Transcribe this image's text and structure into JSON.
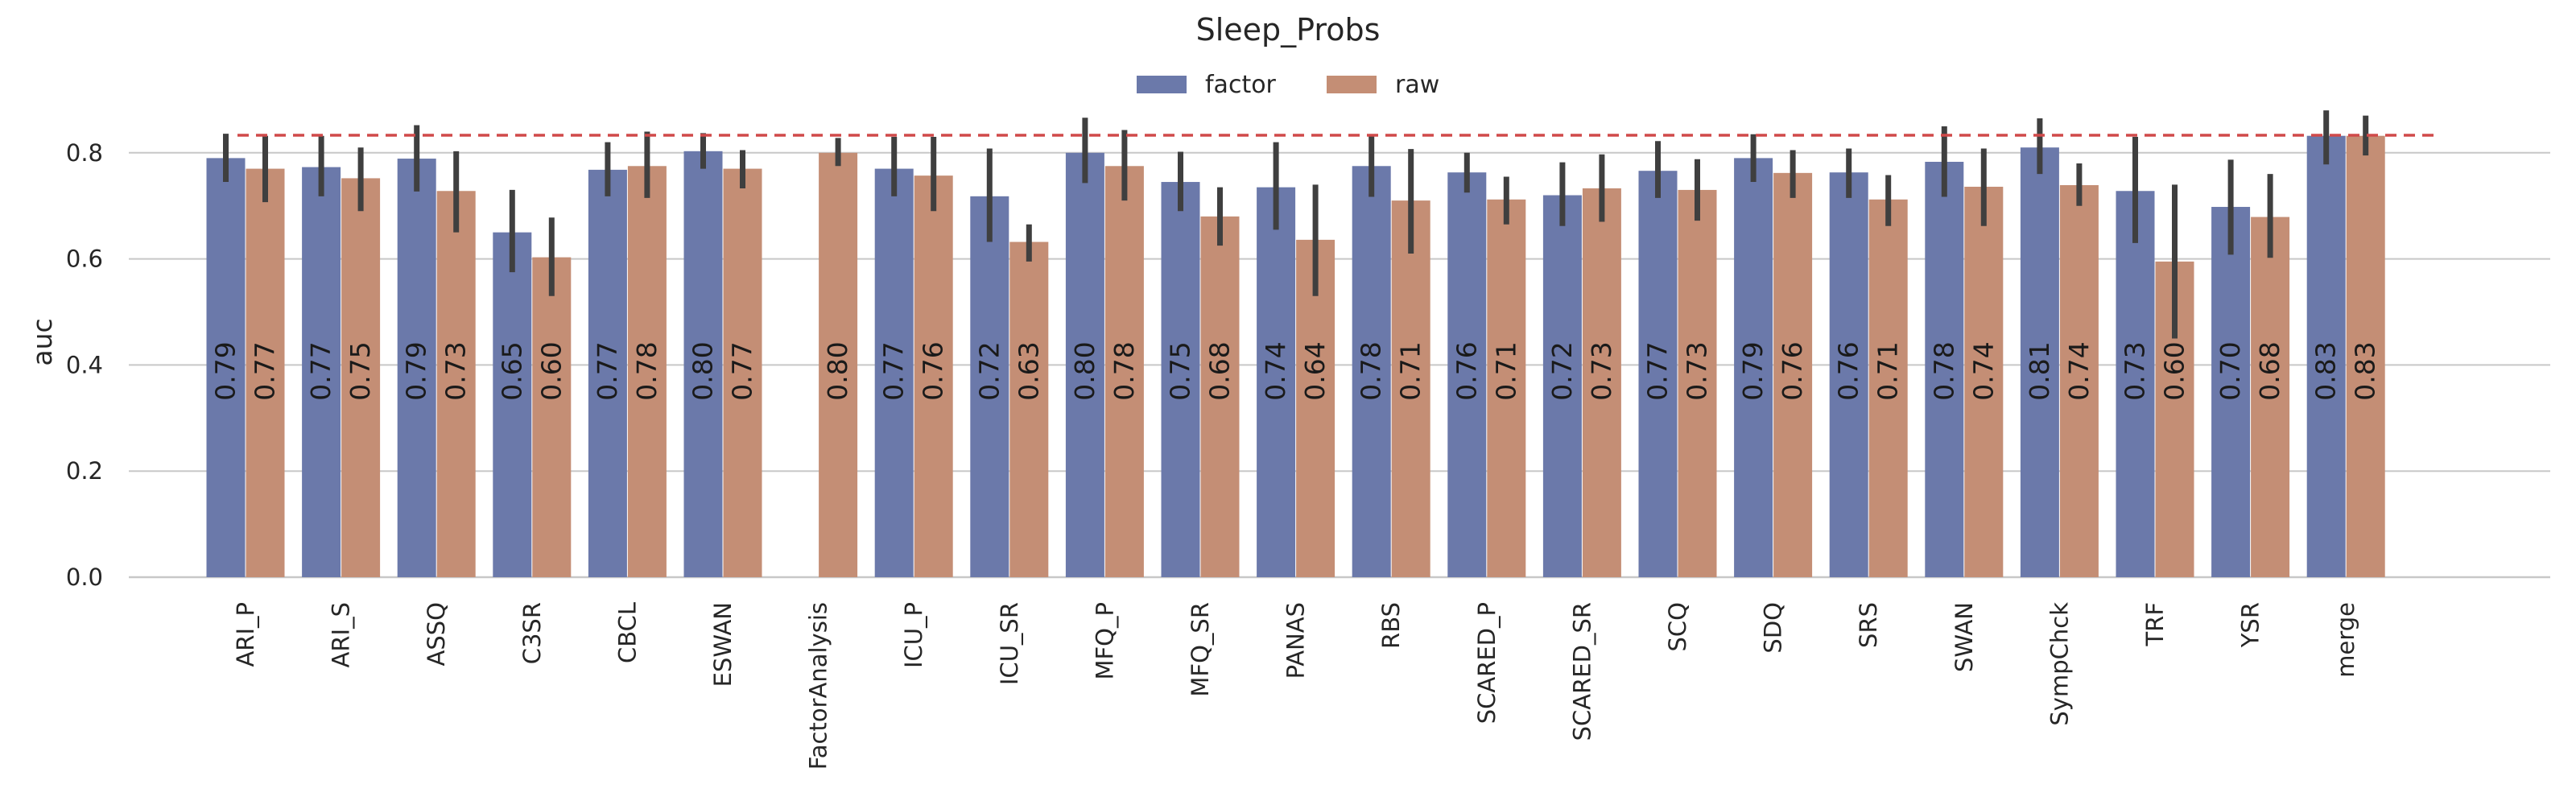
{
  "colors": {
    "factor": "#6b79aa",
    "raw": "#c48e75",
    "errorbar": "#3f3f3f",
    "refline": "#d04a4a",
    "grid": "#c8c8c8"
  },
  "chart_data": {
    "type": "bar",
    "title": "Sleep_Probs",
    "xlabel": "",
    "ylabel": "auc",
    "ylim": [
      0,
      0.9
    ],
    "yticks": [
      "0.0",
      "0.2",
      "0.4",
      "0.6",
      "0.8"
    ],
    "grid": true,
    "legend_position": "top-center",
    "reference_line": 0.833,
    "categories": [
      "ARI_P",
      "ARI_S",
      "ASSQ",
      "C3SR",
      "CBCL",
      "ESWAN",
      "FactorAnalysis",
      "ICU_P",
      "ICU_SR",
      "MFQ_P",
      "MFQ_SR",
      "PANAS",
      "RBS",
      "SCARED_P",
      "SCARED_SR",
      "SCQ",
      "SDQ",
      "SRS",
      "SWAN",
      "SympChck",
      "TRF",
      "YSR",
      "merge"
    ],
    "series": [
      {
        "name": "factor",
        "values": [
          0.79,
          0.773,
          0.789,
          0.65,
          0.768,
          0.803,
          null,
          0.77,
          0.718,
          0.8,
          0.745,
          0.735,
          0.775,
          0.763,
          0.72,
          0.766,
          0.79,
          0.763,
          0.783,
          0.81,
          0.728,
          0.698,
          0.832
        ],
        "labels": [
          "0.79",
          "0.77",
          "0.79",
          "0.65",
          "0.77",
          "0.80",
          "",
          "0.77",
          "0.72",
          "0.80",
          "0.75",
          "0.74",
          "0.78",
          "0.76",
          "0.72",
          "0.77",
          "0.79",
          "0.76",
          "0.78",
          "0.81",
          "0.73",
          "0.70",
          "0.83"
        ],
        "err_low": [
          0.745,
          0.718,
          0.727,
          0.575,
          0.718,
          0.77,
          null,
          0.718,
          0.632,
          0.743,
          0.69,
          0.655,
          0.717,
          0.725,
          0.662,
          0.715,
          0.745,
          0.715,
          0.717,
          0.76,
          0.63,
          0.608,
          0.778
        ],
        "err_high": [
          0.836,
          0.832,
          0.852,
          0.73,
          0.82,
          0.837,
          null,
          0.83,
          0.808,
          0.866,
          0.802,
          0.82,
          0.832,
          0.8,
          0.782,
          0.822,
          0.835,
          0.808,
          0.85,
          0.865,
          0.83,
          0.787,
          0.88
        ]
      },
      {
        "name": "raw",
        "values": [
          0.77,
          0.752,
          0.728,
          0.603,
          0.775,
          0.77,
          0.8,
          0.757,
          0.632,
          0.775,
          0.68,
          0.636,
          0.71,
          0.712,
          0.733,
          0.73,
          0.762,
          0.712,
          0.736,
          0.739,
          0.595,
          0.679,
          0.832
        ],
        "labels": [
          "0.77",
          "0.75",
          "0.73",
          "0.60",
          "0.78",
          "0.77",
          "0.80",
          "0.76",
          "0.63",
          "0.78",
          "0.68",
          "0.64",
          "0.71",
          "0.71",
          "0.73",
          "0.73",
          "0.76",
          "0.71",
          "0.74",
          "0.74",
          "0.60",
          "0.68",
          "0.83"
        ],
        "err_low": [
          0.707,
          0.69,
          0.65,
          0.53,
          0.715,
          0.733,
          0.775,
          0.69,
          0.595,
          0.71,
          0.625,
          0.53,
          0.61,
          0.665,
          0.67,
          0.672,
          0.715,
          0.662,
          0.662,
          0.7,
          0.45,
          0.602,
          0.795
        ],
        "err_high": [
          0.832,
          0.81,
          0.803,
          0.678,
          0.84,
          0.805,
          0.828,
          0.83,
          0.665,
          0.843,
          0.735,
          0.74,
          0.807,
          0.755,
          0.797,
          0.788,
          0.805,
          0.758,
          0.808,
          0.78,
          0.74,
          0.76,
          0.87
        ]
      }
    ]
  }
}
